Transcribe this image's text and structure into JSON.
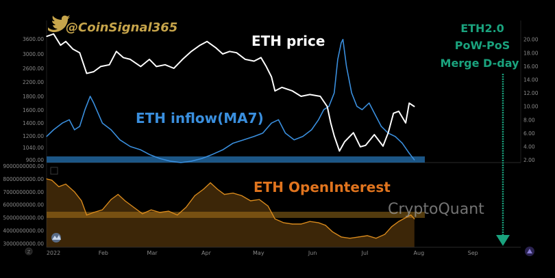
{
  "header": {
    "handle": "@CoinSignal365",
    "accent": "#c7a54b"
  },
  "annotation": {
    "lines": [
      "ETH2.0",
      "PoW-PoS",
      "Merge D-day"
    ],
    "color": "#1aa37e"
  },
  "watermark": "CryptoQuant",
  "x_labels": [
    "2022",
    "Feb",
    "Mar",
    "Apr",
    "May",
    "Jun",
    "Jul",
    "Aug",
    "Sep"
  ],
  "chart_data": [
    {
      "type": "line",
      "title": "",
      "x_range": [
        "2022-01-01",
        "2022-09-30"
      ],
      "ylim_left": [
        800,
        3900
      ],
      "ylim_right": [
        1.6,
        21.6
      ],
      "left_ticks": [
        "3600.00",
        "3000.00",
        "2600.00",
        "2200.00",
        "1800.00",
        "1600.00",
        "1400.00",
        "1200.00",
        "1040.00",
        "900.00"
      ],
      "left_tick_values": [
        3600,
        3000,
        2600,
        2200,
        1800,
        1600,
        1400,
        1200,
        1040,
        900
      ],
      "right_ticks": [
        "20.00",
        "18.00",
        "16.00",
        "14.00",
        "12.00",
        "10.00",
        "8.00",
        "6.00",
        "4.00",
        "2.00"
      ],
      "right_tick_values": [
        20,
        18,
        16,
        14,
        12,
        10,
        8,
        6,
        4,
        2
      ],
      "series": [
        {
          "name": "ETH price",
          "axis": "left",
          "color": "#ffffff",
          "points": [
            [
              "2022-01-01",
              3700
            ],
            [
              "2022-01-05",
              3800
            ],
            [
              "2022-01-09",
              3350
            ],
            [
              "2022-01-12",
              3500
            ],
            [
              "2022-01-16",
              3200
            ],
            [
              "2022-01-20",
              3050
            ],
            [
              "2022-01-24",
              2450
            ],
            [
              "2022-01-28",
              2500
            ],
            [
              "2022-02-01",
              2650
            ],
            [
              "2022-02-06",
              2700
            ],
            [
              "2022-02-10",
              3100
            ],
            [
              "2022-02-14",
              2900
            ],
            [
              "2022-02-18",
              2850
            ],
            [
              "2022-02-24",
              2650
            ],
            [
              "2022-03-01",
              2850
            ],
            [
              "2022-03-05",
              2650
            ],
            [
              "2022-03-10",
              2700
            ],
            [
              "2022-03-15",
              2600
            ],
            [
              "2022-03-20",
              2850
            ],
            [
              "2022-03-25",
              3100
            ],
            [
              "2022-03-30",
              3350
            ],
            [
              "2022-04-03",
              3500
            ],
            [
              "2022-04-08",
              3250
            ],
            [
              "2022-04-12",
              3000
            ],
            [
              "2022-04-16",
              3100
            ],
            [
              "2022-04-20",
              3050
            ],
            [
              "2022-04-25",
              2850
            ],
            [
              "2022-04-30",
              2800
            ],
            [
              "2022-05-04",
              2900
            ],
            [
              "2022-05-07",
              2650
            ],
            [
              "2022-05-10",
              2350
            ],
            [
              "2022-05-12",
              1950
            ],
            [
              "2022-05-16",
              2050
            ],
            [
              "2022-05-22",
              1950
            ],
            [
              "2022-05-27",
              1800
            ],
            [
              "2022-06-01",
              1850
            ],
            [
              "2022-06-07",
              1800
            ],
            [
              "2022-06-11",
              1650
            ],
            [
              "2022-06-13",
              1400
            ],
            [
              "2022-06-15",
              1200
            ],
            [
              "2022-06-18",
              1000
            ],
            [
              "2022-06-21",
              1120
            ],
            [
              "2022-06-26",
              1250
            ],
            [
              "2022-06-30",
              1050
            ],
            [
              "2022-07-03",
              1070
            ],
            [
              "2022-07-08",
              1220
            ],
            [
              "2022-07-13",
              1060
            ],
            [
              "2022-07-16",
              1250
            ],
            [
              "2022-07-19",
              1550
            ],
            [
              "2022-07-22",
              1580
            ],
            [
              "2022-07-26",
              1400
            ],
            [
              "2022-07-28",
              1700
            ],
            [
              "2022-07-31",
              1650
            ]
          ]
        },
        {
          "name": "ETH inflow(MA7)",
          "axis": "right",
          "color": "#3a8fde",
          "points": [
            [
              "2022-01-01",
              5.5
            ],
            [
              "2022-01-05",
              6.5
            ],
            [
              "2022-01-10",
              7.5
            ],
            [
              "2022-01-14",
              8.0
            ],
            [
              "2022-01-17",
              6.5
            ],
            [
              "2022-01-20",
              7.0
            ],
            [
              "2022-01-23",
              9.5
            ],
            [
              "2022-01-26",
              11.5
            ],
            [
              "2022-01-28",
              10.5
            ],
            [
              "2022-02-02",
              7.5
            ],
            [
              "2022-02-07",
              6.5
            ],
            [
              "2022-02-12",
              5.0
            ],
            [
              "2022-02-18",
              4.0
            ],
            [
              "2022-02-24",
              3.5
            ],
            [
              "2022-03-01",
              2.8
            ],
            [
              "2022-03-07",
              2.2
            ],
            [
              "2022-03-13",
              1.8
            ],
            [
              "2022-03-19",
              1.6
            ],
            [
              "2022-03-25",
              1.8
            ],
            [
              "2022-03-31",
              2.2
            ],
            [
              "2022-04-06",
              2.8
            ],
            [
              "2022-04-12",
              3.5
            ],
            [
              "2022-04-18",
              4.5
            ],
            [
              "2022-04-24",
              5.0
            ],
            [
              "2022-04-30",
              5.5
            ],
            [
              "2022-05-05",
              6.0
            ],
            [
              "2022-05-10",
              7.5
            ],
            [
              "2022-05-14",
              8.0
            ],
            [
              "2022-05-18",
              6.0
            ],
            [
              "2022-05-23",
              5.0
            ],
            [
              "2022-05-28",
              5.5
            ],
            [
              "2022-06-02",
              6.5
            ],
            [
              "2022-06-06",
              8.0
            ],
            [
              "2022-06-09",
              9.5
            ],
            [
              "2022-06-12",
              10.0
            ],
            [
              "2022-06-15",
              12.0
            ],
            [
              "2022-06-17",
              17.0
            ],
            [
              "2022-06-19",
              19.5
            ],
            [
              "2022-06-20",
              20.0
            ],
            [
              "2022-06-22",
              16.0
            ],
            [
              "2022-06-25",
              12.0
            ],
            [
              "2022-06-28",
              10.0
            ],
            [
              "2022-07-01",
              9.5
            ],
            [
              "2022-07-05",
              10.5
            ],
            [
              "2022-07-08",
              9.0
            ],
            [
              "2022-07-12",
              7.0
            ],
            [
              "2022-07-16",
              6.0
            ],
            [
              "2022-07-20",
              5.5
            ],
            [
              "2022-07-24",
              4.5
            ],
            [
              "2022-07-28",
              3.0
            ],
            [
              "2022-07-31",
              2.0
            ]
          ]
        }
      ]
    },
    {
      "type": "area",
      "title": "",
      "x_range": [
        "2022-01-01",
        "2022-09-30"
      ],
      "ylim": [
        2700000000,
        8950000000
      ],
      "y_ticks": [
        "9000000000.00",
        "8000000000.00",
        "7000000000.00",
        "6000000000.00",
        "5000000000.00",
        "4000000000.00",
        "3000000000.00"
      ],
      "y_tick_values": [
        9000000000,
        8000000000,
        7000000000,
        6000000000,
        5000000000,
        4000000000,
        3000000000
      ],
      "series": [
        {
          "name": "ETH OpenInterest",
          "color": "#d98a1c",
          "points": [
            [
              "2022-01-01",
              8000000000
            ],
            [
              "2022-01-04",
              7900000000
            ],
            [
              "2022-01-08",
              7400000000
            ],
            [
              "2022-01-12",
              7600000000
            ],
            [
              "2022-01-17",
              7000000000
            ],
            [
              "2022-01-21",
              6300000000
            ],
            [
              "2022-01-24",
              5200000000
            ],
            [
              "2022-01-28",
              5400000000
            ],
            [
              "2022-02-02",
              5600000000
            ],
            [
              "2022-02-07",
              6400000000
            ],
            [
              "2022-02-11",
              6800000000
            ],
            [
              "2022-02-15",
              6300000000
            ],
            [
              "2022-02-20",
              5800000000
            ],
            [
              "2022-02-25",
              5300000000
            ],
            [
              "2022-03-02",
              5600000000
            ],
            [
              "2022-03-07",
              5400000000
            ],
            [
              "2022-03-12",
              5500000000
            ],
            [
              "2022-03-17",
              5200000000
            ],
            [
              "2022-03-22",
              5800000000
            ],
            [
              "2022-03-27",
              6700000000
            ],
            [
              "2022-04-01",
              7200000000
            ],
            [
              "2022-04-05",
              7700000000
            ],
            [
              "2022-04-09",
              7200000000
            ],
            [
              "2022-04-13",
              6800000000
            ],
            [
              "2022-04-18",
              6900000000
            ],
            [
              "2022-04-23",
              6700000000
            ],
            [
              "2022-04-28",
              6300000000
            ],
            [
              "2022-05-03",
              6400000000
            ],
            [
              "2022-05-08",
              5900000000
            ],
            [
              "2022-05-12",
              4900000000
            ],
            [
              "2022-05-17",
              4600000000
            ],
            [
              "2022-05-22",
              4500000000
            ],
            [
              "2022-05-27",
              4500000000
            ],
            [
              "2022-06-01",
              4700000000
            ],
            [
              "2022-06-06",
              4600000000
            ],
            [
              "2022-06-10",
              4400000000
            ],
            [
              "2022-06-14",
              3900000000
            ],
            [
              "2022-06-19",
              3500000000
            ],
            [
              "2022-06-24",
              3400000000
            ],
            [
              "2022-06-29",
              3500000000
            ],
            [
              "2022-07-04",
              3600000000
            ],
            [
              "2022-07-09",
              3400000000
            ],
            [
              "2022-07-14",
              3700000000
            ],
            [
              "2022-07-18",
              4300000000
            ],
            [
              "2022-07-22",
              4700000000
            ],
            [
              "2022-07-26",
              5000000000
            ],
            [
              "2022-07-29",
              5200000000
            ],
            [
              "2022-07-31",
              4900000000
            ]
          ]
        }
      ]
    }
  ]
}
